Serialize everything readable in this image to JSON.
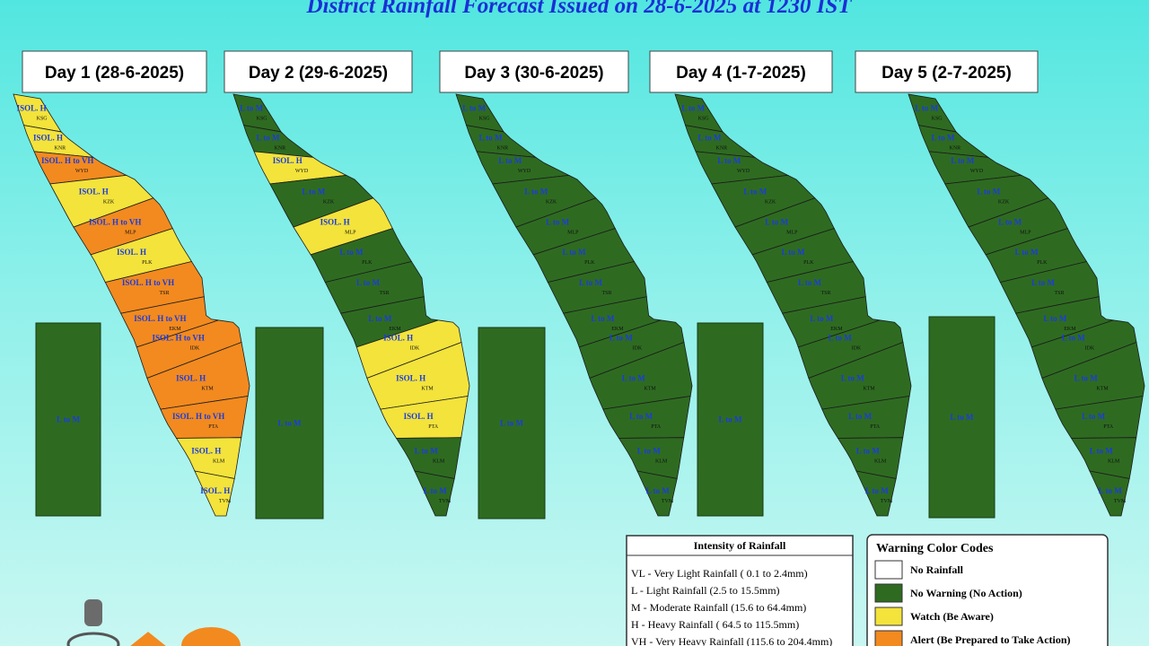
{
  "title": "District Rainfall Forecast Issued on  28-6-2025 at 1230 IST",
  "district_codes": [
    "KSG",
    "KNR",
    "WYD",
    "KZK",
    "MLP",
    "PLK",
    "TSR",
    "EKM",
    "IDK",
    "KTM",
    "PTA",
    "KLM",
    "TVM"
  ],
  "days": [
    {
      "label": "Day 1 (28-6-2025)",
      "lakshadweep": "L to M",
      "districts": [
        {
          "text": "ISOL. H",
          "color": "#f3e33b"
        },
        {
          "text": "ISOL. H",
          "color": "#f3e33b"
        },
        {
          "text": "ISOL. H to VH",
          "color": "#f28a1f"
        },
        {
          "text": "ISOL. H",
          "color": "#f3e33b"
        },
        {
          "text": "ISOL. H to VH",
          "color": "#f28a1f"
        },
        {
          "text": "ISOL. H",
          "color": "#f3e33b"
        },
        {
          "text": "ISOL. H to VH",
          "color": "#f28a1f"
        },
        {
          "text": "ISOL. H to VH",
          "color": "#f28a1f"
        },
        {
          "text": "ISOL. H to VH",
          "color": "#f28a1f"
        },
        {
          "text": "ISOL. H",
          "color": "#f28a1f"
        },
        {
          "text": "ISOL. H to VH",
          "color": "#f28a1f"
        },
        {
          "text": "ISOL. H",
          "color": "#f3e33b"
        },
        {
          "text": "ISOL. H",
          "color": "#f3e33b"
        }
      ]
    },
    {
      "label": "Day 2 (29-6-2025)",
      "lakshadweep": "L to M",
      "districts": [
        {
          "text": "L to M",
          "color": "#2e6b21"
        },
        {
          "text": "L to M",
          "color": "#2e6b21"
        },
        {
          "text": "ISOL. H",
          "color": "#f3e33b"
        },
        {
          "text": "L to M",
          "color": "#2e6b21"
        },
        {
          "text": "ISOL. H",
          "color": "#f3e33b"
        },
        {
          "text": "L to M",
          "color": "#2e6b21"
        },
        {
          "text": "L to M",
          "color": "#2e6b21"
        },
        {
          "text": "L to M",
          "color": "#2e6b21"
        },
        {
          "text": "ISOL. H",
          "color": "#f3e33b"
        },
        {
          "text": "ISOL. H",
          "color": "#f3e33b"
        },
        {
          "text": "ISOL. H",
          "color": "#f3e33b"
        },
        {
          "text": "L to M",
          "color": "#2e6b21"
        },
        {
          "text": "L to M",
          "color": "#2e6b21"
        }
      ]
    },
    {
      "label": "Day 3 (30-6-2025)",
      "lakshadweep": "L to M",
      "districts": [
        {
          "text": "L to M",
          "color": "#2e6b21"
        },
        {
          "text": "L to M",
          "color": "#2e6b21"
        },
        {
          "text": "L to M",
          "color": "#2e6b21"
        },
        {
          "text": "L to M",
          "color": "#2e6b21"
        },
        {
          "text": "L to M",
          "color": "#2e6b21"
        },
        {
          "text": "L to M",
          "color": "#2e6b21"
        },
        {
          "text": "L to M",
          "color": "#2e6b21"
        },
        {
          "text": "L to M",
          "color": "#2e6b21"
        },
        {
          "text": "L to M",
          "color": "#2e6b21"
        },
        {
          "text": "L to M",
          "color": "#2e6b21"
        },
        {
          "text": "L to M",
          "color": "#2e6b21"
        },
        {
          "text": "L to M",
          "color": "#2e6b21"
        },
        {
          "text": "L to M",
          "color": "#2e6b21"
        }
      ]
    },
    {
      "label": "Day 4 (1-7-2025)",
      "lakshadweep": "L to M",
      "districts": [
        {
          "text": "L to M",
          "color": "#2e6b21"
        },
        {
          "text": "L to M",
          "color": "#2e6b21"
        },
        {
          "text": "L to M",
          "color": "#2e6b21"
        },
        {
          "text": "L to M",
          "color": "#2e6b21"
        },
        {
          "text": "L to M",
          "color": "#2e6b21"
        },
        {
          "text": "L to M",
          "color": "#2e6b21"
        },
        {
          "text": "L to M",
          "color": "#2e6b21"
        },
        {
          "text": "L to M",
          "color": "#2e6b21"
        },
        {
          "text": "L to M",
          "color": "#2e6b21"
        },
        {
          "text": "L to M",
          "color": "#2e6b21"
        },
        {
          "text": "L to M",
          "color": "#2e6b21"
        },
        {
          "text": "L to M",
          "color": "#2e6b21"
        },
        {
          "text": "L to M",
          "color": "#2e6b21"
        }
      ]
    },
    {
      "label": "Day 5 (2-7-2025)",
      "lakshadweep": "L to M",
      "districts": [
        {
          "text": "L to M",
          "color": "#2e6b21"
        },
        {
          "text": "L to M",
          "color": "#2e6b21"
        },
        {
          "text": "L to M",
          "color": "#2e6b21"
        },
        {
          "text": "L to M",
          "color": "#2e6b21"
        },
        {
          "text": "L to M",
          "color": "#2e6b21"
        },
        {
          "text": "L to M",
          "color": "#2e6b21"
        },
        {
          "text": "L to M",
          "color": "#2e6b21"
        },
        {
          "text": "L to M",
          "color": "#2e6b21"
        },
        {
          "text": "L to M",
          "color": "#2e6b21"
        },
        {
          "text": "L to M",
          "color": "#2e6b21"
        },
        {
          "text": "L to M",
          "color": "#2e6b21"
        },
        {
          "text": "L to M",
          "color": "#2e6b21"
        },
        {
          "text": "L to M",
          "color": "#2e6b21"
        }
      ]
    }
  ],
  "intensity_legend": {
    "title": "Intensity of Rainfall",
    "items": [
      "VL - Very Light Rainfall ( 0.1 to 2.4mm)",
      "L  - Light Rainfall (2.5 to 15.5mm)",
      "M  - Moderate Rainfall (15.6 to 64.4mm)",
      "H  - Heavy Rainfall ( 64.5 to 115.5mm)",
      "VH - Very Heavy Rainfall (115.6 to 204.4mm)"
    ]
  },
  "warning_legend": {
    "title": "Warning Color Codes",
    "items": [
      {
        "label": "No Rainfall",
        "color": "#ffffff"
      },
      {
        "label": "No Warning (No Action)",
        "color": "#2e6b21"
      },
      {
        "label": "Watch (Be Aware)",
        "color": "#f3e33b"
      },
      {
        "label": "Alert (Be Prepared to Take Action)",
        "color": "#f28a1f"
      }
    ]
  }
}
